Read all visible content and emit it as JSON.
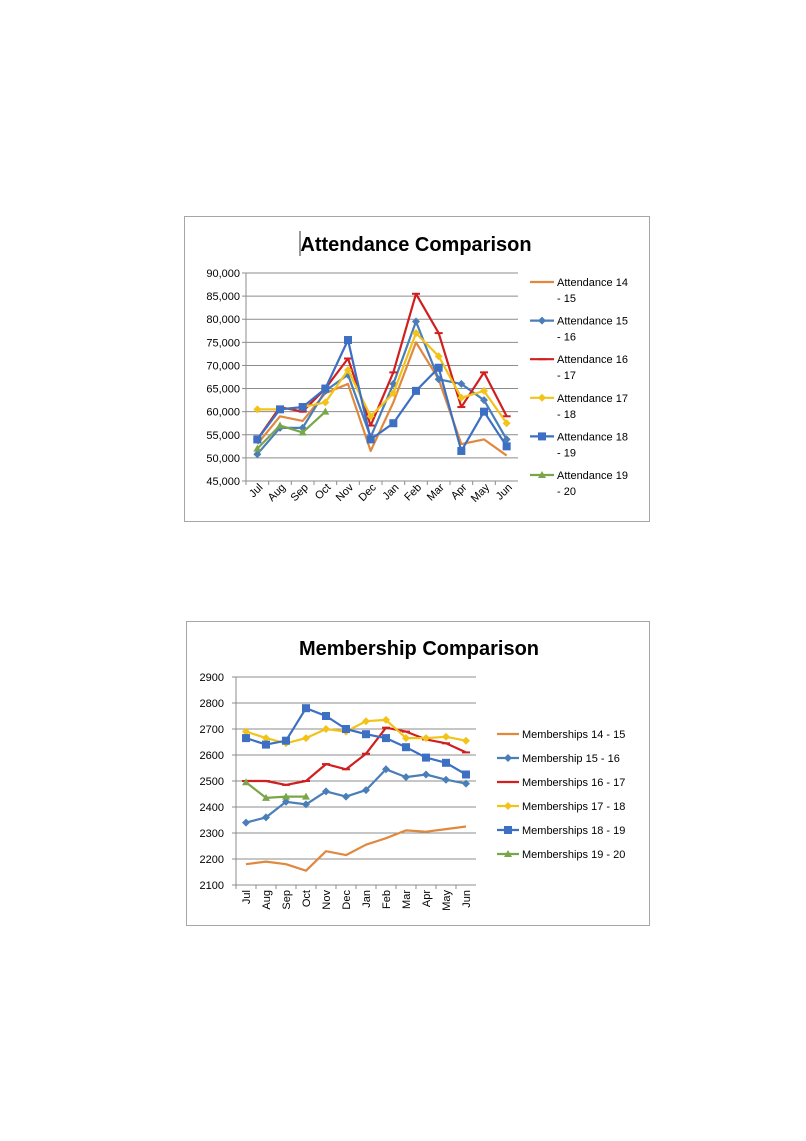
{
  "chart_data": [
    {
      "type": "line",
      "title": "Attendance Comparison",
      "xlabel": "",
      "ylabel": "",
      "ylim": [
        45000,
        90000
      ],
      "grid": true,
      "legend_position": "right",
      "categories": [
        "Jul",
        "Aug",
        "Sep",
        "Oct",
        "Nov",
        "Dec",
        "Jan",
        "Feb",
        "Mar",
        "Apr",
        "May",
        "Jun"
      ],
      "y_ticks": [
        "45,000",
        "50,000",
        "55,000",
        "60,000",
        "65,000",
        "70,000",
        "75,000",
        "80,000",
        "85,000",
        "90,000"
      ],
      "series": [
        {
          "name": "Attendance 14 - 15",
          "legend_lines": [
            "Attendance 14",
            "- 15"
          ],
          "color": "#e0883e",
          "marker": "none",
          "values": [
            53000,
            59000,
            58000,
            64000,
            66000,
            51500,
            62000,
            75000,
            67000,
            53000,
            54000,
            50500
          ]
        },
        {
          "name": "Attendance 15 - 16",
          "legend_lines": [
            "Attendance 15",
            "- 16"
          ],
          "color": "#4a7eb8",
          "marker": "diamond",
          "values": [
            50800,
            56500,
            56500,
            64500,
            68000,
            54500,
            66000,
            79500,
            67000,
            66000,
            62500,
            54000
          ]
        },
        {
          "name": "Attendance 16 - 17",
          "legend_lines": [
            "Attendance 16",
            "- 17"
          ],
          "color": "#d11f1f",
          "marker": "dash",
          "values": [
            54000,
            61000,
            60000,
            65000,
            71500,
            57000,
            68500,
            85500,
            77000,
            61000,
            68500,
            59000
          ]
        },
        {
          "name": "Attendance 17 - 18",
          "legend_lines": [
            "Attendance 17",
            "- 18"
          ],
          "color": "#f2c318",
          "marker": "diamond",
          "values": [
            60500,
            60500,
            61000,
            62000,
            69000,
            59000,
            64000,
            77000,
            72000,
            63000,
            64500,
            57500
          ]
        },
        {
          "name": "Attendance 18 - 19",
          "legend_lines": [
            "Attendance 18",
            "- 19"
          ],
          "color": "#3d6fc2",
          "marker": "square",
          "values": [
            54000,
            60500,
            61000,
            65000,
            75500,
            54000,
            57500,
            64500,
            69500,
            51500,
            60000,
            52500
          ]
        },
        {
          "name": "Attendance 19 - 20",
          "legend_lines": [
            "Attendance 19",
            "- 20"
          ],
          "color": "#7aa64a",
          "marker": "triangle",
          "values": [
            52000,
            57000,
            55500,
            60000,
            null,
            null,
            null,
            null,
            null,
            null,
            null,
            null
          ]
        }
      ]
    },
    {
      "type": "line",
      "title": "Membership Comparison",
      "xlabel": "",
      "ylabel": "",
      "ylim": [
        2100,
        2900
      ],
      "grid": true,
      "legend_position": "right",
      "categories": [
        "Jul",
        "Aug",
        "Sep",
        "Oct",
        "Nov",
        "Dec",
        "Jan",
        "Feb",
        "Mar",
        "Apr",
        "May",
        "Jun"
      ],
      "y_ticks": [
        "2100",
        "2200",
        "2300",
        "2400",
        "2500",
        "2600",
        "2700",
        "2800",
        "2900"
      ],
      "series": [
        {
          "name": "Memberships 14 - 15",
          "legend_lines": [
            "Memberships 14 - 15"
          ],
          "color": "#e0883e",
          "marker": "none",
          "values": [
            2180,
            2190,
            2180,
            2155,
            2230,
            2215,
            2255,
            2280,
            2310,
            2305,
            2315,
            2325
          ]
        },
        {
          "name": "Membership 15 - 16",
          "legend_lines": [
            "Membership 15 - 16"
          ],
          "color": "#4a7eb8",
          "marker": "diamond",
          "values": [
            2340,
            2360,
            2420,
            2410,
            2460,
            2440,
            2465,
            2545,
            2515,
            2525,
            2505,
            2490
          ]
        },
        {
          "name": "Memberships 16 - 17",
          "legend_lines": [
            "Memberships 16 - 17"
          ],
          "color": "#d11f1f",
          "marker": "dash",
          "values": [
            2500,
            2500,
            2485,
            2500,
            2565,
            2545,
            2605,
            2705,
            2690,
            2660,
            2645,
            2610
          ]
        },
        {
          "name": "Memberships 17 - 18",
          "legend_lines": [
            "Memberships 17 - 18"
          ],
          "color": "#f2c318",
          "marker": "diamond",
          "values": [
            2690,
            2665,
            2645,
            2665,
            2700,
            2690,
            2730,
            2735,
            2665,
            2665,
            2670,
            2655
          ]
        },
        {
          "name": "Memberships 18 - 19",
          "legend_lines": [
            "Memberships 18 - 19"
          ],
          "color": "#3d6fc2",
          "marker": "square",
          "values": [
            2665,
            2640,
            2655,
            2780,
            2750,
            2700,
            2680,
            2665,
            2630,
            2590,
            2570,
            2525
          ]
        },
        {
          "name": "Memberships 19 - 20",
          "legend_lines": [
            "Memberships 19 - 20"
          ],
          "color": "#7aa64a",
          "marker": "triangle",
          "values": [
            2495,
            2435,
            2440,
            2440,
            null,
            null,
            null,
            null,
            null,
            null,
            null,
            null
          ]
        }
      ]
    }
  ]
}
